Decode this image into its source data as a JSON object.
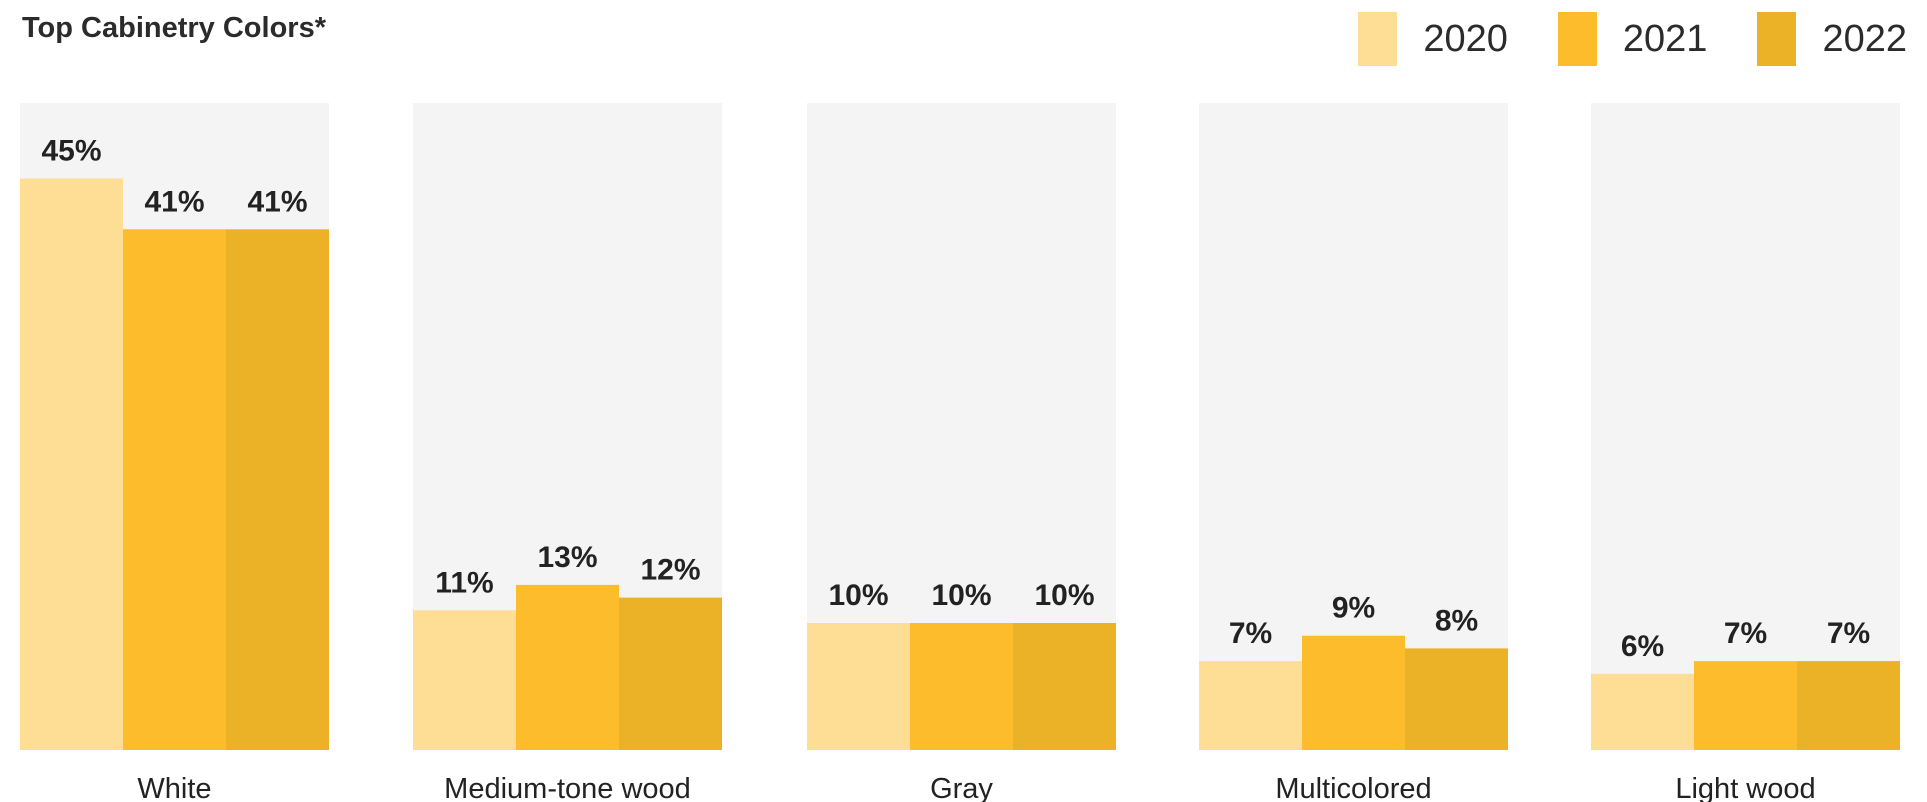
{
  "chart_data": {
    "type": "bar",
    "title": "Top Cabinetry Colors*",
    "categories": [
      "White",
      "Medium-tone wood",
      "Gray",
      "Multicolored",
      "Light wood"
    ],
    "series": [
      {
        "name": "2020",
        "color": "#fedd94",
        "values": [
          45,
          11,
          10,
          7,
          6
        ],
        "labels": [
          "45%",
          "11%",
          "10%",
          "7%",
          "6%"
        ]
      },
      {
        "name": "2021",
        "color": "#fdbc2b",
        "values": [
          41,
          13,
          10,
          9,
          7
        ],
        "labels": [
          "41%",
          "13%",
          "10%",
          "9%",
          "7%"
        ]
      },
      {
        "name": "2022",
        "color": "#ebb227",
        "values": [
          41,
          12,
          10,
          8,
          7
        ],
        "labels": [
          "41%",
          "12%",
          "10%",
          "8%",
          "7%"
        ]
      }
    ],
    "ylim": [
      0,
      50
    ],
    "panel_background": "#f4f4f4",
    "grid": false,
    "legend_position": "top-right"
  }
}
